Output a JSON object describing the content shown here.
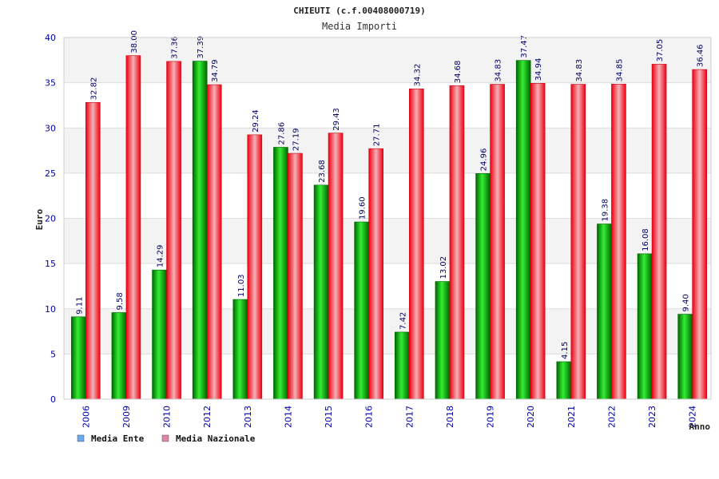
{
  "chart_data": {
    "type": "bar",
    "title": "CHIEUTI (c.f.00408000719)",
    "subtitle": "Media Importi",
    "xlabel": "Anno",
    "ylabel": "Euro",
    "ylim": [
      0,
      40
    ],
    "yticks": [
      "0",
      "5",
      "10",
      "15",
      "20",
      "25",
      "30",
      "35",
      "40"
    ],
    "categories": [
      "2006",
      "2009",
      "2010",
      "2012",
      "2013",
      "2014",
      "2015",
      "2016",
      "2017",
      "2018",
      "2019",
      "2020",
      "2021",
      "2022",
      "2023",
      "2024"
    ],
    "series": [
      {
        "name": "Media Ente",
        "color": "#00aa00",
        "legend_color": "#66aaee",
        "values": [
          9.11,
          9.58,
          14.29,
          37.39,
          11.03,
          27.86,
          23.68,
          19.6,
          7.42,
          13.02,
          24.96,
          37.47,
          4.15,
          19.38,
          16.08,
          9.4
        ],
        "labels": [
          "9.11",
          "9.58",
          "14.29",
          "37.39",
          "11.03",
          "27.86",
          "23.68",
          "19.60",
          "7.42",
          "13.02",
          "24.96",
          "37.47",
          "4.15",
          "19.38",
          "16.08",
          "9.40"
        ]
      },
      {
        "name": "Media Nazionale",
        "color": "#ee1122",
        "legend_color": "#dd88aa",
        "values": [
          32.82,
          38.0,
          37.36,
          34.79,
          29.24,
          27.19,
          29.43,
          27.71,
          34.32,
          34.68,
          34.83,
          34.94,
          34.83,
          34.85,
          37.05,
          36.46
        ],
        "labels": [
          "32.82",
          "38.00",
          "37.36",
          "34.79",
          "29.24",
          "27.19",
          "29.43",
          "27.71",
          "34.32",
          "34.68",
          "34.83",
          "34.94",
          "34.83",
          "34.85",
          "37.05",
          "36.46"
        ]
      }
    ],
    "grid": true,
    "legend_position": "bottom-left"
  }
}
